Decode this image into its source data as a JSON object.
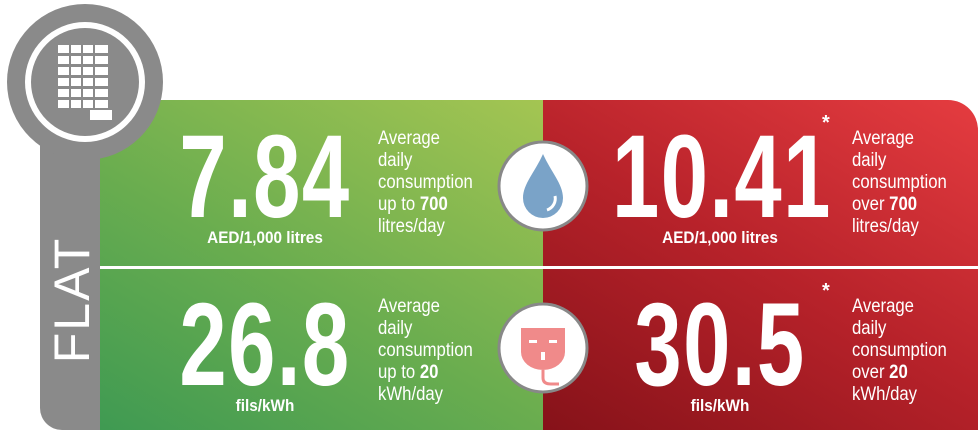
{
  "label": "FLAT",
  "rows": [
    {
      "low": {
        "value": "7.84",
        "unit": "AED/1,000 litres",
        "desc": "Average daily consumption up to",
        "limit": "700",
        "per": "litres/day"
      },
      "high": {
        "value": "10.41",
        "mark": "*",
        "unit": "AED/1,000 litres",
        "desc": "Average daily consumption over",
        "limit": "700",
        "per": "litres/day"
      }
    },
    {
      "low": {
        "value": "26.8",
        "unit": "fils/kWh",
        "desc": "Average daily consumption up to",
        "limit": "20",
        "per": "kWh/day"
      },
      "high": {
        "value": "30.5",
        "mark": "*",
        "unit": "fils/kWh",
        "desc": "Average daily consumption over",
        "limit": "20",
        "per": "kWh/day"
      }
    }
  ]
}
